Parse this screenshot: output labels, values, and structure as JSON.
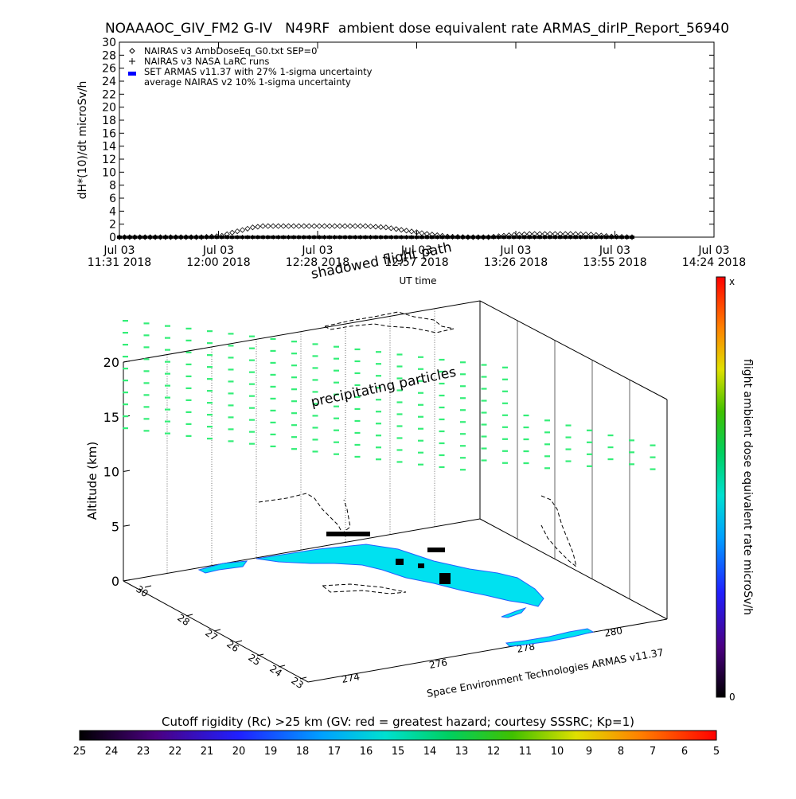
{
  "title": "NOAAAOC_GIV_FM2 G-IV   N49RF  ambient dose equivalent rate ARMAS_dirIP_Report_56940",
  "top_chart": {
    "ylabel": "dH*(10)/dt microSv/h",
    "xlabel": "UT time",
    "ylim": [
      0,
      30
    ],
    "y_ticks": [
      "0",
      "2",
      "4",
      "6",
      "8",
      "10",
      "12",
      "14",
      "16",
      "18",
      "20",
      "22",
      "24",
      "26",
      "28",
      "30"
    ],
    "x_ticks": [
      {
        "line1": "Jul 03",
        "line2": "11:31 2018"
      },
      {
        "line1": "Jul 03",
        "line2": "12:00 2018"
      },
      {
        "line1": "Jul 03",
        "line2": "12:28 2018"
      },
      {
        "line1": "Jul 03",
        "line2": "12:57 2018"
      },
      {
        "line1": "Jul 03",
        "line2": "13:26 2018"
      },
      {
        "line1": "Jul 03",
        "line2": "13:55 2018"
      },
      {
        "line1": "Jul 03",
        "line2": "14:24 2018"
      }
    ],
    "legend": [
      "NAIRAS v3 AmbDoseEq_G0.txt SEP=0",
      "NAIRAS v3 NASA LaRC runs",
      "SET ARMAS v11.37 with 27% 1-sigma uncertainty",
      "average NAIRAS v2 10% 1-sigma uncertainty"
    ]
  },
  "chart_data": [
    {
      "type": "scatter",
      "title": "NOAAAOC_GIV_FM2 G-IV   N49RF  ambient dose equivalent rate ARMAS_dirIP_Report_56940",
      "xlabel": "UT time",
      "ylabel": "dH*(10)/dt microSv/h",
      "ylim": [
        0,
        30
      ],
      "x_unit": "minutes after 11:31 UT",
      "series": [
        {
          "name": "NAIRAS v3 AmbDoseEq_G0.txt SEP=0",
          "marker": "diamond",
          "x": [
            0,
            10,
            20,
            30,
            40,
            50,
            55,
            60,
            65,
            70,
            80,
            90,
            100,
            110,
            120,
            130,
            140,
            150,
            160,
            170,
            175,
            180,
            190,
            200,
            210,
            220,
            230,
            240,
            250
          ],
          "values": [
            0,
            0,
            0,
            0,
            0,
            0.2,
            0.7,
            1.1,
            1.5,
            1.7,
            1.7,
            1.7,
            1.7,
            1.7,
            1.7,
            1.5,
            1.0,
            0.5,
            0.1,
            0,
            0,
            0,
            0.3,
            0.5,
            0.5,
            0.5,
            0.4,
            0.1,
            0
          ]
        },
        {
          "name": "NAIRAS v3 NASA LaRC runs",
          "marker": "plus",
          "x": [
            0,
            30,
            60,
            90,
            120,
            150,
            180,
            210,
            240
          ],
          "values": [
            0,
            0,
            0,
            0,
            0,
            0,
            0,
            0,
            0
          ]
        },
        {
          "name": "SET ARMAS v11.37 with 27% 1-sigma uncertainty",
          "marker": "blue-square",
          "x": [
            0,
            20,
            40,
            60,
            80,
            100,
            120,
            140,
            160,
            180,
            200,
            220,
            240,
            250
          ],
          "values": [
            0,
            0,
            0,
            0,
            0,
            0,
            0,
            0,
            0,
            0,
            0,
            0,
            0,
            0
          ]
        }
      ]
    },
    {
      "type": "scatter",
      "title": "",
      "ylabel": "Altitude (km)",
      "zlim": [
        0,
        20
      ],
      "altitude_ticks": [
        "0",
        "5",
        "10",
        "15",
        "20"
      ],
      "latitude_ticks": [
        "23",
        "24",
        "25",
        "26",
        "27",
        "28",
        "30"
      ],
      "longitude_ticks": [
        "274",
        "276",
        "278",
        "280"
      ],
      "annotations": [
        "shadowed flight path",
        "precipitating particles"
      ]
    }
  ],
  "globe_panel": {
    "altitude_label": "Altitude (km)",
    "annotation_path": "shadowed flight path",
    "annotation_particles": "precipitating particles",
    "credit": "Space Environment Technologies ARMAS v11.37"
  },
  "colorbar_right": {
    "label": "flight ambient dose equivalent rate microSv/h",
    "top": "x",
    "bottom": "0"
  },
  "colorbar_bottom": {
    "title": "Cutoff rigidity (Rc) >25 km (GV: red = greatest hazard; courtesy SSSRC; Kp=1)",
    "ticks": [
      "25",
      "24",
      "23",
      "22",
      "21",
      "20",
      "19",
      "18",
      "17",
      "16",
      "15",
      "14",
      "13",
      "12",
      "11",
      "10",
      "9",
      "8",
      "7",
      "6",
      "5"
    ]
  },
  "colors": {
    "particles": "#33ee77",
    "land": "#00e1f0",
    "marker_blue": "#0000ff"
  }
}
